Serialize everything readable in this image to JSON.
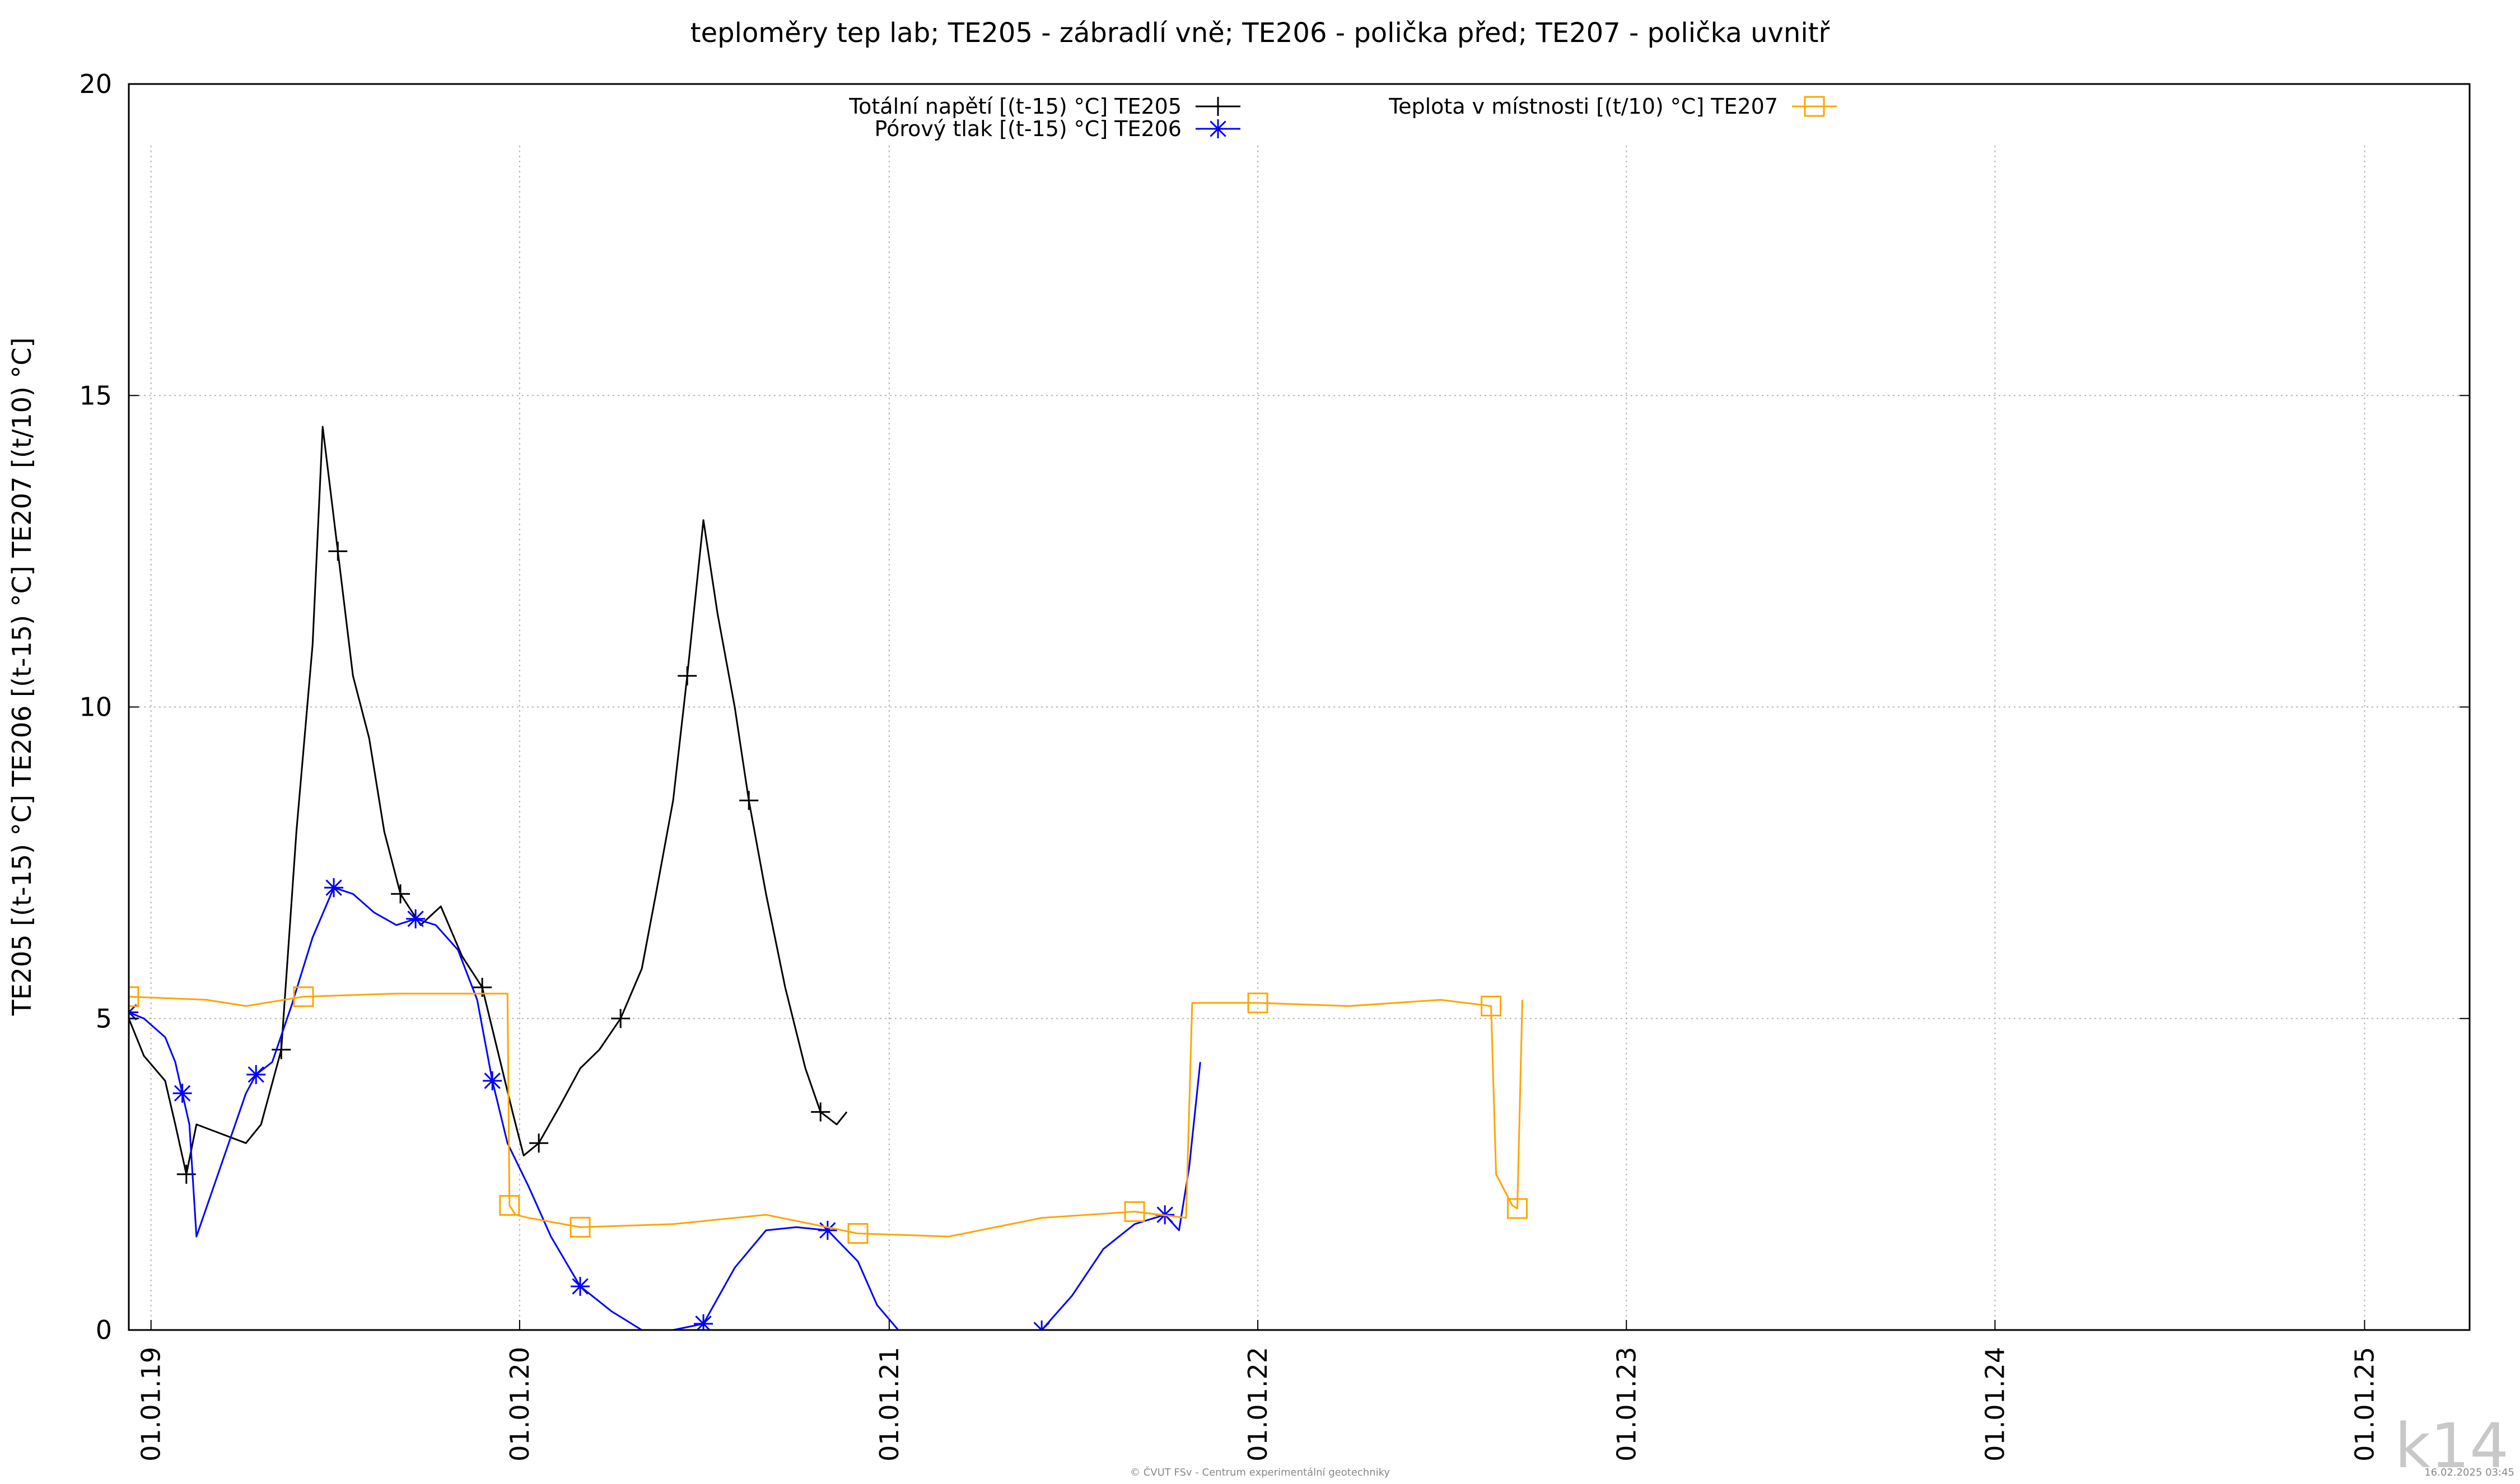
{
  "chart_data": {
    "type": "line",
    "title": "teploměry tep lab; TE205 - zábradlí vně; TE206 - polička před; TE207 - polička uvnitř",
    "ylabel": "TE205 [(t-15) °C] TE206 [(t-15) °C] TE207 [(t/10) °C]",
    "xlabel": "",
    "ylim": [
      0,
      20
    ],
    "xlim": [
      "2018-12-10",
      "2025-04-15"
    ],
    "x_ticks": [
      {
        "date": "2019-01-01",
        "label": "01.01.19"
      },
      {
        "date": "2020-01-01",
        "label": "01.01.20"
      },
      {
        "date": "2021-01-01",
        "label": "01.01.21"
      },
      {
        "date": "2022-01-01",
        "label": "01.01.22"
      },
      {
        "date": "2023-01-01",
        "label": "01.01.23"
      },
      {
        "date": "2024-01-01",
        "label": "01.01.24"
      },
      {
        "date": "2025-01-01",
        "label": "01.01.25"
      }
    ],
    "y_ticks": [
      {
        "value": 0,
        "label": "0"
      },
      {
        "value": 5,
        "label": "5"
      },
      {
        "value": 10,
        "label": "10"
      },
      {
        "value": 15,
        "label": "15"
      },
      {
        "value": 20,
        "label": "20"
      }
    ],
    "grid": true,
    "legend_position": "top",
    "series": [
      {
        "name": "Totální napětí [(t-15) °C] TE205",
        "color": "#000000",
        "marker": "plus",
        "x": [
          "2018-12-10",
          "2018-12-25",
          "2019-01-15",
          "2019-01-25",
          "2019-02-05",
          "2019-02-15",
          "2019-04-05",
          "2019-04-20",
          "2019-05-10",
          "2019-05-25",
          "2019-06-10",
          "2019-06-20",
          "2019-07-05",
          "2019-07-20",
          "2019-08-05",
          "2019-08-20",
          "2019-09-05",
          "2019-09-25",
          "2019-10-15",
          "2019-11-05",
          "2019-11-25",
          "2019-12-10",
          "2019-12-25",
          "2020-01-05",
          "2020-01-20",
          "2020-02-10",
          "2020-03-01",
          "2020-03-20",
          "2020-04-10",
          "2020-05-01",
          "2020-05-15",
          "2020-06-01",
          "2020-06-15",
          "2020-07-01",
          "2020-07-15",
          "2020-08-01",
          "2020-08-15",
          "2020-09-01",
          "2020-09-20",
          "2020-10-10",
          "2020-10-25",
          "2020-11-10",
          "2020-11-20"
        ],
        "y": [
          5.0,
          4.4,
          4.0,
          3.3,
          2.5,
          3.3,
          3.0,
          3.3,
          4.5,
          8.0,
          11.0,
          14.5,
          12.5,
          10.5,
          9.5,
          8.0,
          7.0,
          6.5,
          6.8,
          6.0,
          5.5,
          4.5,
          3.5,
          2.8,
          3.0,
          3.6,
          4.2,
          4.5,
          5.0,
          5.8,
          7.0,
          8.5,
          10.5,
          13.0,
          11.5,
          10.0,
          8.5,
          7.0,
          5.5,
          4.2,
          3.5,
          3.3,
          3.5
        ]
      },
      {
        "name": "Pórový tlak [(t-15) °C] TE206",
        "color": "#0000ff",
        "marker": "asterisk",
        "x": [
          "2018-12-10",
          "2018-12-25",
          "2019-01-15",
          "2019-01-25",
          "2019-02-01",
          "2019-02-08",
          "2019-02-15",
          "2019-04-05",
          "2019-04-15",
          "2019-05-01",
          "2019-05-20",
          "2019-06-10",
          "2019-07-01",
          "2019-07-20",
          "2019-08-10",
          "2019-09-01",
          "2019-09-20",
          "2019-10-10",
          "2019-11-01",
          "2019-11-20",
          "2019-12-05",
          "2019-12-20",
          "2020-01-10",
          "2020-02-01",
          "2020-03-01",
          "2020-04-01",
          "2020-05-01",
          "2020-06-01",
          "2020-07-01",
          "2020-08-01",
          "2020-09-01",
          "2020-10-01",
          "2020-11-01",
          "2020-12-01",
          "2020-12-20",
          "2021-01-10",
          "2021-06-01",
          "2021-07-01",
          "2021-08-01",
          "2021-09-01",
          "2021-10-01",
          "2021-10-15",
          "2021-10-25",
          "2021-11-05"
        ],
        "y": [
          5.1,
          5.0,
          4.7,
          4.3,
          3.8,
          3.3,
          1.5,
          3.8,
          4.1,
          4.3,
          5.2,
          6.3,
          7.1,
          7.0,
          6.7,
          6.5,
          6.6,
          6.5,
          6.1,
          5.3,
          4.0,
          3.0,
          2.3,
          1.5,
          0.7,
          0.3,
          0.0,
          0.0,
          0.1,
          1.0,
          1.6,
          1.65,
          1.6,
          1.1,
          0.4,
          0.0,
          0.0,
          0.55,
          1.3,
          1.7,
          1.85,
          1.6,
          2.6,
          4.3
        ]
      },
      {
        "name": "Teplota v místnosti [(t/10) °C] TE207",
        "color": "#ffa500",
        "marker": "square",
        "x": [
          "2018-12-10",
          "2019-02-25",
          "2019-04-05",
          "2019-06-01",
          "2019-09-01",
          "2019-12-20",
          "2019-12-22",
          "2019-12-28",
          "2020-01-10",
          "2020-03-01",
          "2020-06-01",
          "2020-09-01",
          "2020-12-01",
          "2021-03-01",
          "2021-06-01",
          "2021-09-01",
          "2021-10-22",
          "2021-10-28",
          "2022-01-01",
          "2022-04-01",
          "2022-07-01",
          "2022-08-20",
          "2022-08-25",
          "2022-09-10",
          "2022-09-15",
          "2022-09-20"
        ],
        "y": [
          5.35,
          5.3,
          5.2,
          5.35,
          5.4,
          5.4,
          2.0,
          1.85,
          1.8,
          1.65,
          1.7,
          1.85,
          1.55,
          1.5,
          1.8,
          1.9,
          1.8,
          5.25,
          5.25,
          5.2,
          5.3,
          5.2,
          2.5,
          2.0,
          1.95,
          5.3
        ]
      }
    ]
  },
  "footer": {
    "credit": "© ČVUT FSv - Centrum experimentální geotechniky",
    "timestamp": "16.02.2025 03:45",
    "logo_text": "k14"
  }
}
